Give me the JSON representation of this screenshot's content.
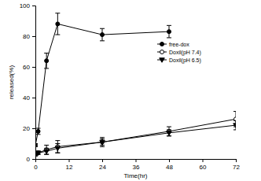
{
  "chart_data": {
    "type": "line",
    "x_label": "Time(hr)",
    "y_label": "released(%)",
    "x": [
      0,
      1,
      4,
      8,
      24,
      48,
      72
    ],
    "xlim": [
      0,
      72
    ],
    "xticks": [
      0,
      12,
      24,
      36,
      48,
      60,
      72
    ],
    "ylim": [
      0,
      100
    ],
    "yticks": [
      0,
      20,
      40,
      60,
      80,
      100
    ],
    "legend": "upper right",
    "series": [
      {
        "name": "free-dox",
        "color": "#000000",
        "marker": "circle",
        "values": [
          9,
          18,
          64,
          88,
          81,
          83,
          null
        ],
        "errors": [
          1,
          2,
          5,
          7,
          4,
          4,
          null
        ]
      },
      {
        "name": "Doxil(pH 7.4)",
        "color": "#000000",
        "marker": "circle-open",
        "values": [
          3,
          4,
          6,
          8,
          11,
          18,
          26
        ],
        "errors": [
          1,
          1,
          3,
          4,
          3,
          3,
          5
        ]
      },
      {
        "name": "Doxil(pH 6.5)",
        "color": "#000000",
        "marker": "triangle-down",
        "values": [
          3,
          4,
          5,
          7,
          11,
          17,
          22
        ],
        "errors": [
          1,
          1,
          2,
          3,
          2,
          2,
          3
        ]
      }
    ]
  }
}
